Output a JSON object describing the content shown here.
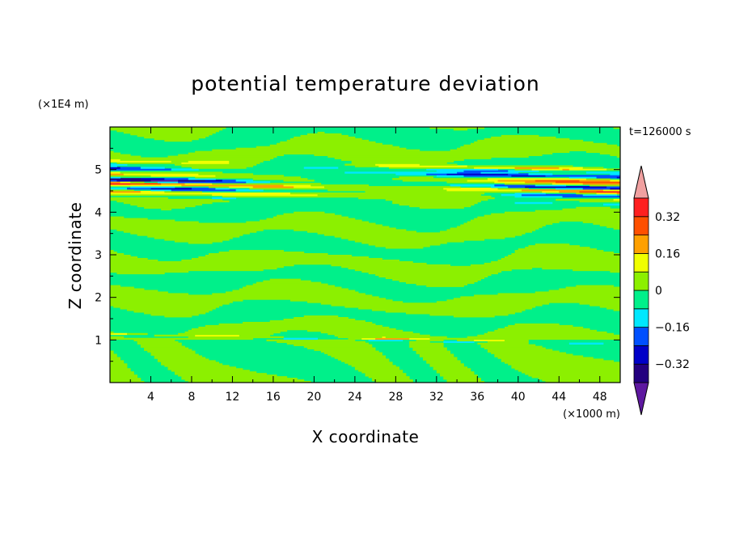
{
  "chart_data": {
    "type": "heatmap",
    "title": "potential temperature deviation",
    "xlabel": "X coordinate",
    "ylabel": "Z coordinate",
    "x_unit": "(×1000 m)",
    "y_unit": "(×1E4 m)",
    "time_label": "t=126000 s",
    "xlim": [
      0,
      50
    ],
    "ylim": [
      0,
      6
    ],
    "x_ticks": [
      4,
      8,
      12,
      16,
      20,
      24,
      28,
      32,
      36,
      40,
      44,
      48
    ],
    "y_ticks": [
      1,
      2,
      3,
      4,
      5
    ],
    "colorbar": {
      "levels": [
        -0.4,
        -0.32,
        -0.24,
        -0.16,
        -0.08,
        0,
        0.08,
        0.16,
        0.24,
        0.32,
        0.4
      ],
      "labels": [
        {
          "value": 0.32,
          "text": "0.32"
        },
        {
          "value": 0.16,
          "text": "0.16"
        },
        {
          "value": 0,
          "text": "0"
        },
        {
          "value": -0.16,
          "text": "-0.16"
        },
        {
          "value": -0.32,
          "text": "-0.32"
        }
      ],
      "colors": [
        "#5e18a0",
        "#23007f",
        "#0000c8",
        "#0050ff",
        "#00e8ff",
        "#00f08a",
        "#8cf000",
        "#f0ff00",
        "#ffa000",
        "#ff5000",
        "#ff2020",
        "#f0a0a0"
      ]
    },
    "bands": [
      {
        "z": 5.25,
        "value": 0.0,
        "width": 0.06
      },
      {
        "z": 5.1,
        "value": 0.18,
        "width": 0.04
      },
      {
        "z": 5.03,
        "value": -0.12,
        "width": 0.04
      },
      {
        "z": 4.93,
        "value": -0.28,
        "width": 0.04
      },
      {
        "z": 4.8,
        "value": 0.2,
        "width": 0.05
      },
      {
        "z": 4.67,
        "value": -0.34,
        "width": 0.04
      },
      {
        "z": 4.58,
        "value": 0.3,
        "width": 0.04
      },
      {
        "z": 4.47,
        "value": -0.22,
        "width": 0.04
      },
      {
        "z": 4.38,
        "value": 0.12,
        "width": 0.04
      },
      {
        "z": 4.28,
        "value": -0.1,
        "width": 0.03
      },
      {
        "z": 1.0,
        "value": -0.1,
        "width": 0.02
      },
      {
        "z": 1.04,
        "value": 0.14,
        "width": 0.015
      }
    ]
  }
}
